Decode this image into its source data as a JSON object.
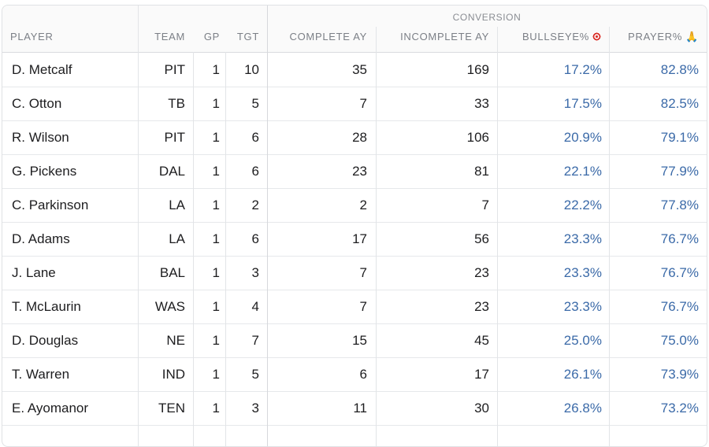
{
  "group_header": "CONVERSION",
  "columns": {
    "player": "PLAYER",
    "team": "TEAM",
    "gp": "GP",
    "tgt": "TGT",
    "complete_ay": "COMPLETE AY",
    "incomplete_ay": "INCOMPLETE AY",
    "bullseye": "BULLSEYE%",
    "prayer": "PRAYER%"
  },
  "icons": {
    "bullseye": "target-icon",
    "prayer": "praying-hands-icon"
  },
  "accent_color": "#3b6aa8",
  "rows": [
    {
      "player": "D. Metcalf",
      "team": "PIT",
      "gp": "1",
      "tgt": "10",
      "complete_ay": "35",
      "incomplete_ay": "169",
      "bullseye": "17.2%",
      "prayer": "82.8%"
    },
    {
      "player": "C. Otton",
      "team": "TB",
      "gp": "1",
      "tgt": "5",
      "complete_ay": "7",
      "incomplete_ay": "33",
      "bullseye": "17.5%",
      "prayer": "82.5%"
    },
    {
      "player": "R. Wilson",
      "team": "PIT",
      "gp": "1",
      "tgt": "6",
      "complete_ay": "28",
      "incomplete_ay": "106",
      "bullseye": "20.9%",
      "prayer": "79.1%"
    },
    {
      "player": "G. Pickens",
      "team": "DAL",
      "gp": "1",
      "tgt": "6",
      "complete_ay": "23",
      "incomplete_ay": "81",
      "bullseye": "22.1%",
      "prayer": "77.9%"
    },
    {
      "player": "C. Parkinson",
      "team": "LA",
      "gp": "1",
      "tgt": "2",
      "complete_ay": "2",
      "incomplete_ay": "7",
      "bullseye": "22.2%",
      "prayer": "77.8%"
    },
    {
      "player": "D. Adams",
      "team": "LA",
      "gp": "1",
      "tgt": "6",
      "complete_ay": "17",
      "incomplete_ay": "56",
      "bullseye": "23.3%",
      "prayer": "76.7%"
    },
    {
      "player": "J. Lane",
      "team": "BAL",
      "gp": "1",
      "tgt": "3",
      "complete_ay": "7",
      "incomplete_ay": "23",
      "bullseye": "23.3%",
      "prayer": "76.7%"
    },
    {
      "player": "T. McLaurin",
      "team": "WAS",
      "gp": "1",
      "tgt": "4",
      "complete_ay": "7",
      "incomplete_ay": "23",
      "bullseye": "23.3%",
      "prayer": "76.7%"
    },
    {
      "player": "D. Douglas",
      "team": "NE",
      "gp": "1",
      "tgt": "7",
      "complete_ay": "15",
      "incomplete_ay": "45",
      "bullseye": "25.0%",
      "prayer": "75.0%"
    },
    {
      "player": "T. Warren",
      "team": "IND",
      "gp": "1",
      "tgt": "5",
      "complete_ay": "6",
      "incomplete_ay": "17",
      "bullseye": "26.1%",
      "prayer": "73.9%"
    },
    {
      "player": "E. Ayomanor",
      "team": "TEN",
      "gp": "1",
      "tgt": "3",
      "complete_ay": "11",
      "incomplete_ay": "30",
      "bullseye": "26.8%",
      "prayer": "73.2%"
    }
  ]
}
